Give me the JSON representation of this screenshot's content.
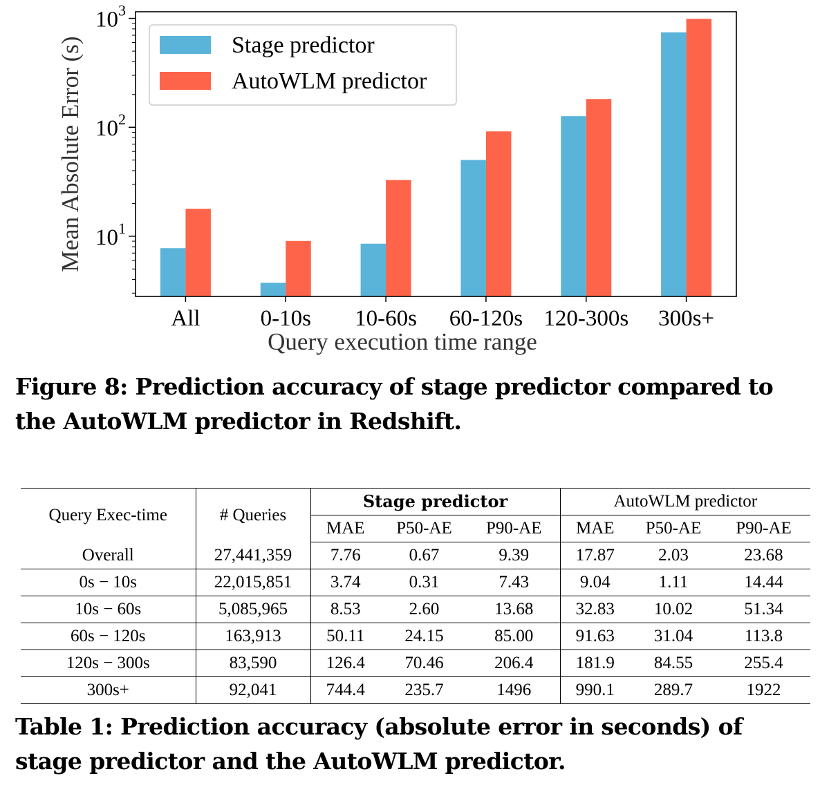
{
  "figure": {
    "caption": "Figure 8: Prediction accuracy of stage predictor compared to the AutoWLM predictor in Redshift.",
    "chart_data": {
      "type": "bar",
      "title": "",
      "xlabel": "Query execution time range",
      "ylabel": "Mean Absolute Error (s)",
      "yscale": "log",
      "ylim": [
        2.8,
        1150
      ],
      "yticks": [
        {
          "value": 10,
          "base": "10",
          "exp": "1"
        },
        {
          "value": 100,
          "base": "10",
          "exp": "2"
        },
        {
          "value": 1000,
          "base": "10",
          "exp": "3"
        }
      ],
      "categories": [
        "All",
        "0-10s",
        "10-60s",
        "60-120s",
        "120-300s",
        "300s+"
      ],
      "series": [
        {
          "name": "Stage predictor",
          "color": "#5ab4d9",
          "values": [
            7.76,
            3.74,
            8.53,
            50.11,
            126.4,
            744.4
          ]
        },
        {
          "name": "AutoWLM predictor",
          "color": "#fe644a",
          "values": [
            17.87,
            9.04,
            32.83,
            91.63,
            181.9,
            990.1
          ]
        }
      ],
      "legend": "top-left",
      "grid": false
    }
  },
  "table": {
    "caption": "Table 1: Prediction accuracy (absolute error in seconds) of stage predictor and the AutoWLM predictor.",
    "headers": {
      "exec_time": "Query Exec-time",
      "queries": "# Queries",
      "stage_group": "Stage predictor",
      "autowlm_group": "AutoWLM predictor",
      "sub": [
        "MAE",
        "P50-AE",
        "P90-AE",
        "MAE",
        "P50-AE",
        "P90-AE"
      ]
    },
    "rows": [
      [
        "Overall",
        "27,441,359",
        "7.76",
        "0.67",
        "9.39",
        "17.87",
        "2.03",
        "23.68"
      ],
      [
        "0s − 10s",
        "22,015,851",
        "3.74",
        "0.31",
        "7.43",
        "9.04",
        "1.11",
        "14.44"
      ],
      [
        "10s − 60s",
        "5,085,965",
        "8.53",
        "2.60",
        "13.68",
        "32.83",
        "10.02",
        "51.34"
      ],
      [
        "60s − 120s",
        "163,913",
        "50.11",
        "24.15",
        "85.00",
        "91.63",
        "31.04",
        "113.8"
      ],
      [
        "120s − 300s",
        "83,590",
        "126.4",
        "70.46",
        "206.4",
        "181.9",
        "84.55",
        "255.4"
      ],
      [
        "300s+",
        "92,041",
        "744.4",
        "235.7",
        "1496",
        "990.1",
        "289.7",
        "1922"
      ]
    ]
  }
}
